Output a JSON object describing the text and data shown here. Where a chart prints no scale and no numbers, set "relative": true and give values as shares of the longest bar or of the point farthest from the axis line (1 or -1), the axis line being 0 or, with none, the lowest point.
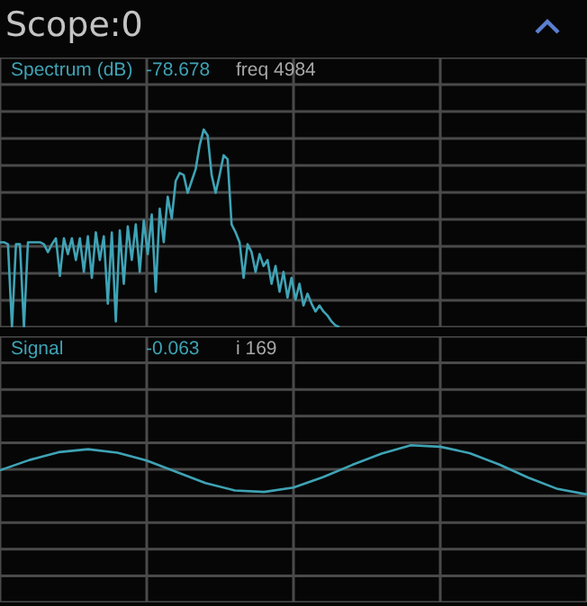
{
  "chart_data": [
    {
      "type": "line",
      "title": "Scope:0",
      "ylabel": "Spectrum (dB)",
      "annotations": [
        "-78.678",
        "freq 4984"
      ],
      "relative": true,
      "grid": true,
      "tick_labels": false,
      "categories": [
        null,
        null,
        null,
        null,
        null,
        null,
        null,
        null,
        null,
        null,
        null,
        null,
        null,
        null,
        null,
        null,
        null,
        null,
        null,
        null,
        null,
        null,
        null,
        null,
        null,
        null,
        null,
        null,
        null,
        null,
        null,
        null,
        null,
        null,
        null,
        null,
        null,
        null,
        null,
        null,
        null,
        null,
        null,
        null,
        null,
        null,
        null,
        null,
        null,
        null,
        null,
        null,
        null,
        null,
        null,
        null,
        null,
        null,
        null,
        null,
        null,
        null,
        null,
        null,
        null,
        null,
        null,
        null,
        null,
        null,
        null,
        null,
        null,
        null,
        null,
        null,
        null,
        null,
        null,
        null,
        null,
        null,
        null,
        null,
        null,
        null,
        null,
        null,
        null,
        null,
        null,
        null,
        null,
        null,
        null,
        null,
        null,
        null,
        null,
        null,
        null,
        null,
        null,
        null,
        null,
        null,
        null,
        null,
        null,
        null,
        null,
        null,
        null,
        null,
        null,
        null,
        null,
        null,
        null,
        null,
        null,
        null,
        null,
        null,
        null,
        null,
        null,
        null,
        null,
        null,
        null,
        null,
        null,
        null,
        null,
        null,
        null,
        null,
        null,
        null,
        null,
        null,
        null,
        null,
        null,
        null,
        null,
        null
      ],
      "series": [
        {
          "color": "#3fa3b5",
          "values": [
            0.43,
            0.43,
            0.42,
            0,
            0.42,
            0.42,
            0,
            0.43,
            0.43,
            0.43,
            0.43,
            0.42,
            0.38,
            0.42,
            0.45,
            0.26,
            0.45,
            0.37,
            0.45,
            0.34,
            0.45,
            0.28,
            0.46,
            0.25,
            0.48,
            0.34,
            0.46,
            0.12,
            0.48,
            0.03,
            0.49,
            0.22,
            0.51,
            0.34,
            0.52,
            0.28,
            0.54,
            0.37,
            0.57,
            0.18,
            0.6,
            0.43,
            0.66,
            0.55,
            0.74,
            0.78,
            0.77,
            0.68,
            0.74,
            0.8,
            0.92,
            1,
            0.97,
            0.77,
            0.68,
            0.77,
            0.87,
            0.85,
            0.52,
            0.48,
            0.43,
            0.25,
            0.42,
            0.38,
            0.28,
            0.37,
            0.31,
            0.34,
            0.22,
            0.31,
            0.18,
            0.28,
            0.15,
            0.25,
            0.14,
            0.22,
            0.11,
            0.17,
            0.12,
            0.08,
            0.11,
            0.08,
            0.06,
            0.03,
            0.01,
            0,
            null,
            null,
            null,
            null,
            null,
            null,
            null,
            null,
            null,
            null,
            null,
            null,
            null,
            null,
            null,
            null,
            null,
            null,
            null,
            null,
            null,
            null,
            null,
            null,
            null,
            null,
            null,
            null,
            null,
            null,
            null,
            null,
            null,
            null,
            null,
            null,
            null,
            null,
            null,
            null,
            null,
            null,
            null,
            null,
            null,
            null,
            null,
            null,
            null,
            null,
            null,
            null,
            null,
            null,
            null,
            null,
            null,
            null,
            null,
            null,
            null,
            null
          ]
        }
      ]
    },
    {
      "type": "line",
      "ylabel": "Signal",
      "annotations": [
        "-0.063",
        "i 169"
      ],
      "relative": true,
      "grid": true,
      "tick_labels": false,
      "categories": [
        null,
        null,
        null,
        null,
        null,
        null,
        null,
        null,
        null,
        null,
        null,
        null,
        null,
        null,
        null,
        null,
        null,
        null,
        null,
        null,
        null
      ],
      "series": [
        {
          "color": "#3fa3b5",
          "values": [
            0.49,
            0.7,
            0.86,
            0.92,
            0.85,
            0.69,
            0.46,
            0.23,
            0.08,
            0.05,
            0.14,
            0.35,
            0.6,
            0.83,
            1,
            0.97,
            0.84,
            0.61,
            0.34,
            0.11,
            0
          ]
        }
      ]
    }
  ]
}
